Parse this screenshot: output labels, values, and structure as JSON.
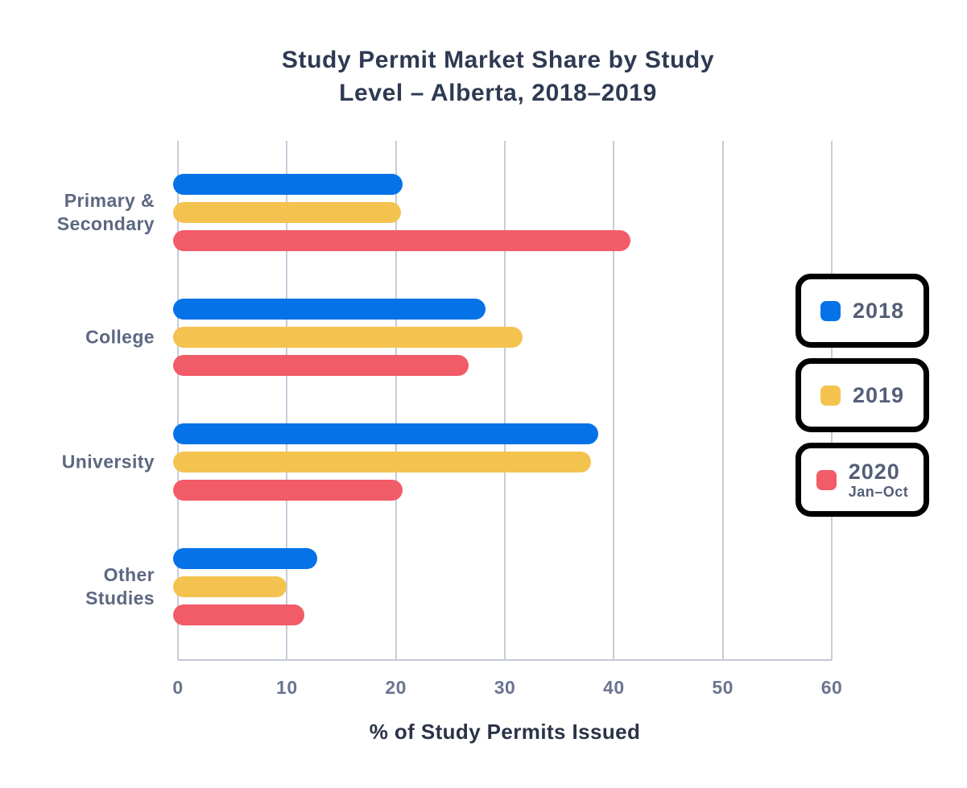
{
  "figure": {
    "title_line1": "Study Permit Market Share by Study",
    "title_line2": "Level – Alberta, 2018–2019"
  },
  "chart_data": {
    "type": "bar",
    "orientation": "horizontal",
    "title": "Study Permit Market Share by Study Level – Alberta, 2018–2019",
    "xlabel": "% of Study Permits Issued",
    "xlim": [
      0,
      60
    ],
    "xticks": [
      0,
      10,
      20,
      30,
      40,
      50,
      60
    ],
    "grid": true,
    "legend_position": "right-overlay",
    "categories": [
      "Primary & Secondary",
      "College",
      "University",
      "Other Studies"
    ],
    "category_label_lines": [
      [
        "Primary &",
        "Secondary"
      ],
      [
        "College"
      ],
      [
        "University"
      ],
      [
        "Other",
        "Studies"
      ]
    ],
    "series": [
      {
        "name": "2018",
        "sublabel": "",
        "color": "#0572e8",
        "values": [
          20.6,
          28.2,
          38.6,
          12.8
        ]
      },
      {
        "name": "2019",
        "sublabel": "",
        "color": "#f4c24f",
        "values": [
          20.5,
          31.6,
          37.9,
          10.0
        ]
      },
      {
        "name": "2020",
        "sublabel": "Jan–Oct",
        "color": "#f25b68",
        "values": [
          41.5,
          26.7,
          20.6,
          11.6
        ]
      }
    ]
  },
  "colors": {
    "series_2018": "#0572e8",
    "series_2019": "#f4c24f",
    "series_2020": "#f25b68",
    "title_text": "#2e3a52",
    "axis_label_text": "#2b3347",
    "category_text": "#5d6781",
    "tick_text": "#6b7490",
    "gridline": "#c6ccd9",
    "legend_border": "#000000",
    "legend_text": "#545e77",
    "background": "#ffffff"
  }
}
